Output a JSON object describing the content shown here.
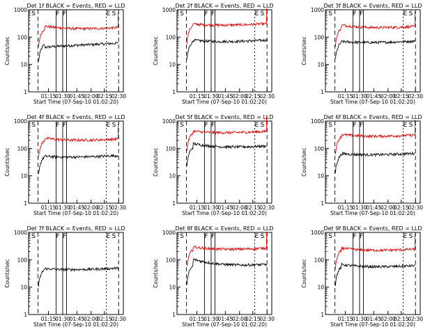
{
  "chart_data": [
    {
      "type": "line",
      "title": "Det 1f BLACK = Events, RED = LLD",
      "xlabel": "Start Time (07-Sep-10 01:02:20)",
      "ylabel": "Counts/sec",
      "yscale": "log",
      "ylim": [
        1,
        1000
      ],
      "x_ticks": [
        "01:15",
        "01:30",
        "01:45",
        "02:00",
        "02:15",
        "02:30"
      ],
      "y_ticks": [
        "1",
        "10",
        "100",
        "1000"
      ],
      "markers": [
        "S",
        "F",
        "F",
        "E",
        "S"
      ],
      "series": [
        {
          "name": "Events",
          "color": "#000000",
          "level": 55,
          "start": 45
        },
        {
          "name": "LLD",
          "color": "#e00000",
          "level": 200,
          "start": 300
        }
      ]
    },
    {
      "type": "line",
      "title": "Det 2f BLACK = Events, RED = LLD",
      "xlabel": "Start Time (07-Sep-10 01:02:20)",
      "ylabel": "Counts/sec",
      "yscale": "log",
      "ylim": [
        1,
        1000
      ],
      "x_ticks": [
        "01:15",
        "01:30",
        "01:45",
        "02:00",
        "02:15",
        "02:30"
      ],
      "y_ticks": [
        "1",
        "10",
        "100",
        "1000"
      ],
      "markers": [
        "S",
        "F",
        "F",
        "E",
        "S"
      ],
      "series": [
        {
          "name": "Events",
          "color": "#000000",
          "level": 70,
          "start": 90
        },
        {
          "name": "LLD",
          "color": "#e00000",
          "level": 280,
          "start": 350
        }
      ]
    },
    {
      "type": "line",
      "title": "Det 3f BLACK = Events, RED = LLD",
      "xlabel": "Start Time (07-Sep-10 01:02:20)",
      "ylabel": "Counts/sec",
      "yscale": "log",
      "ylim": [
        1,
        1000
      ],
      "x_ticks": [
        "01:15",
        "01:30",
        "01:45",
        "02:00",
        "02:15",
        "02:30"
      ],
      "y_ticks": [
        "1",
        "10",
        "100",
        "1000"
      ],
      "markers": [
        "S",
        "F",
        "F",
        "E",
        "S"
      ],
      "series": [
        {
          "name": "Events",
          "color": "#000000",
          "level": 65,
          "start": 80
        },
        {
          "name": "LLD",
          "color": "#e00000",
          "level": 220,
          "start": 330
        }
      ]
    },
    {
      "type": "line",
      "title": "Det 4f BLACK = Events, RED = LLD",
      "xlabel": "Start Time (07-Sep-10 01:02:20)",
      "ylabel": "Counts/sec",
      "yscale": "log",
      "ylim": [
        1,
        1000
      ],
      "x_ticks": [
        "01:15",
        "01:30",
        "01:45",
        "02:00",
        "02:15",
        "02:30"
      ],
      "y_ticks": [
        "1",
        "10",
        "100",
        "1000"
      ],
      "markers": [
        "S",
        "F",
        "F",
        "E",
        "S"
      ],
      "series": [
        {
          "name": "Events",
          "color": "#000000",
          "level": 50,
          "start": 60
        },
        {
          "name": "LLD",
          "color": "#e00000",
          "level": 200,
          "start": 280
        }
      ]
    },
    {
      "type": "line",
      "title": "Det 5f BLACK = Events, RED = LLD",
      "xlabel": "Start Time (07-Sep-10 01:02:20)",
      "ylabel": "Counts/sec",
      "yscale": "log",
      "ylim": [
        1,
        1000
      ],
      "x_ticks": [
        "01:15",
        "01:30",
        "01:45",
        "02:00",
        "02:15",
        "02:30"
      ],
      "y_ticks": [
        "1",
        "10",
        "100",
        "1000"
      ],
      "markers": [
        "S",
        "F",
        "F",
        "E",
        "S"
      ],
      "series": [
        {
          "name": "Events",
          "color": "#000000",
          "level": 110,
          "start": 180
        },
        {
          "name": "LLD",
          "color": "#e00000",
          "level": 380,
          "start": 500
        }
      ]
    },
    {
      "type": "line",
      "title": "Det 6f BLACK = Events, RED = LLD",
      "xlabel": "Start Time (07-Sep-10 01:02:20)",
      "ylabel": "Counts/sec",
      "yscale": "log",
      "ylim": [
        1,
        1000
      ],
      "x_ticks": [
        "01:15",
        "01:30",
        "01:45",
        "02:00",
        "02:15",
        "02:30"
      ],
      "y_ticks": [
        "1",
        "10",
        "100",
        "1000"
      ],
      "markers": [
        "S",
        "F",
        "F",
        "E",
        "S"
      ],
      "series": [
        {
          "name": "Events",
          "color": "#000000",
          "level": 60,
          "start": 75
        },
        {
          "name": "LLD",
          "color": "#e00000",
          "level": 280,
          "start": 380
        }
      ]
    },
    {
      "type": "line",
      "title": "Det 7f BLACK = Events, RED = LLD",
      "xlabel": "Start Time (07-Sep-10 01:02:20)",
      "ylabel": "Counts/sec",
      "yscale": "log",
      "ylim": [
        1,
        1000
      ],
      "x_ticks": [
        "01:15",
        "01:30",
        "01:45",
        "02:00",
        "02:15",
        "02:30"
      ],
      "y_ticks": [
        "1",
        "10",
        "100",
        "1000"
      ],
      "markers": [
        "S",
        "F",
        "F",
        "E",
        "S"
      ],
      "series": [
        {
          "name": "Events",
          "color": "#000000",
          "level": 45,
          "start": 55
        }
      ]
    },
    {
      "type": "line",
      "title": "Det 8f BLACK = Events, RED = LLD",
      "xlabel": "Start Time (07-Sep-10 01:02:20)",
      "ylabel": "Counts/sec",
      "yscale": "log",
      "ylim": [
        1,
        1000
      ],
      "x_ticks": [
        "01:15",
        "01:30",
        "01:45",
        "02:00",
        "02:15",
        "02:30"
      ],
      "y_ticks": [
        "1",
        "10",
        "100",
        "1000"
      ],
      "markers": [
        "S",
        "F",
        "F",
        "E",
        "S"
      ],
      "series": [
        {
          "name": "Events",
          "color": "#000000",
          "level": 60,
          "start": 130
        },
        {
          "name": "LLD",
          "color": "#e00000",
          "level": 240,
          "start": 350
        }
      ]
    },
    {
      "type": "line",
      "title": "Det 9f BLACK = Events, RED = LLD",
      "xlabel": "Start Time (07-Sep-10 01:02:20)",
      "ylabel": "Counts/sec",
      "yscale": "log",
      "ylim": [
        1,
        1000
      ],
      "x_ticks": [
        "01:15",
        "01:30",
        "01:45",
        "02:00",
        "02:15",
        "02:30"
      ],
      "y_ticks": [
        "1",
        "10",
        "100",
        "1000"
      ],
      "markers": [
        "S",
        "F",
        "F",
        "E",
        "S"
      ],
      "series": [
        {
          "name": "Events",
          "color": "#000000",
          "level": 55,
          "start": 80
        },
        {
          "name": "LLD",
          "color": "#e00000",
          "level": 220,
          "start": 320
        }
      ]
    }
  ]
}
